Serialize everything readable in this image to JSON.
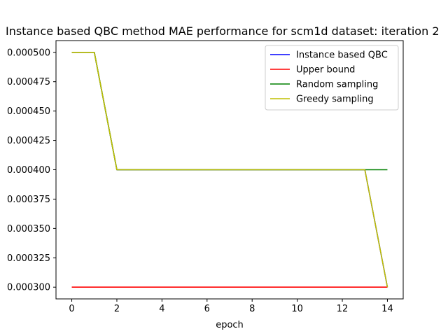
{
  "chart_data": {
    "type": "line",
    "title": "Instance based QBC method MAE performance for scm1d dataset: iteration 2",
    "xlabel": "epoch",
    "ylabel": "",
    "xlim": [
      -0.7,
      14.7
    ],
    "ylim": [
      0.00029,
      0.00051
    ],
    "x_ticks": [
      0,
      2,
      4,
      6,
      8,
      10,
      12,
      14
    ],
    "y_ticks": [
      0.0003,
      0.000325,
      0.00035,
      0.000375,
      0.0004,
      0.000425,
      0.00045,
      0.000475,
      0.0005
    ],
    "y_tick_labels": [
      "0.000300",
      "0.000325",
      "0.000350",
      "0.000375",
      "0.000400",
      "0.000425",
      "0.000450",
      "0.000475",
      "0.000500"
    ],
    "grid": false,
    "legend_position": "top-right",
    "x": [
      0,
      1,
      2,
      3,
      4,
      5,
      6,
      7,
      8,
      9,
      10,
      11,
      12,
      13,
      14
    ],
    "series": [
      {
        "name": "Instance based QBC",
        "color": "#0000ff",
        "values": [
          0.0005,
          0.0005,
          0.0004,
          0.0004,
          0.0004,
          0.0004,
          0.0004,
          0.0004,
          0.0004,
          0.0004,
          0.0004,
          0.0004,
          0.0004,
          0.0004,
          0.0003
        ]
      },
      {
        "name": "Upper bound",
        "color": "#ff0000",
        "values": [
          0.0003,
          0.0003,
          0.0003,
          0.0003,
          0.0003,
          0.0003,
          0.0003,
          0.0003,
          0.0003,
          0.0003,
          0.0003,
          0.0003,
          0.0003,
          0.0003,
          0.0003
        ]
      },
      {
        "name": "Random sampling",
        "color": "#008000",
        "values": [
          0.0005,
          0.0005,
          0.0004,
          0.0004,
          0.0004,
          0.0004,
          0.0004,
          0.0004,
          0.0004,
          0.0004,
          0.0004,
          0.0004,
          0.0004,
          0.0004,
          0.0004
        ]
      },
      {
        "name": "Greedy sampling",
        "color": "#bfbf00",
        "values": [
          0.0005,
          0.0005,
          0.0004,
          0.0004,
          0.0004,
          0.0004,
          0.0004,
          0.0004,
          0.0004,
          0.0004,
          0.0004,
          0.0004,
          0.0004,
          0.0004,
          0.0003
        ]
      }
    ]
  }
}
